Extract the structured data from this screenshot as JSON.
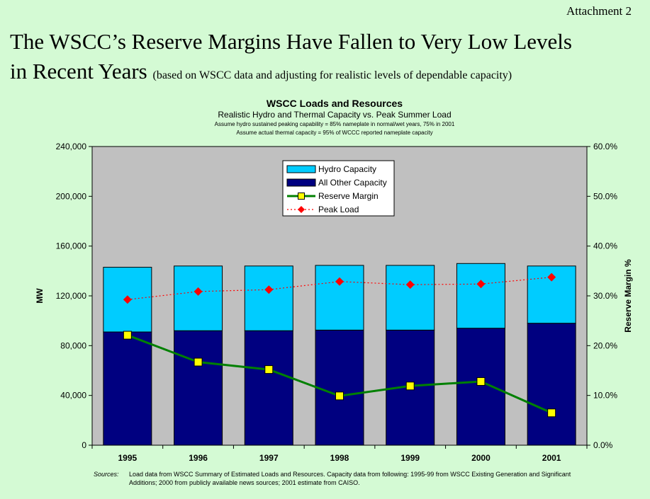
{
  "header": {
    "attachment": "Attachment 2",
    "title_line1": "The WSCC’s Reserve Margins Have Fallen to Very Low Levels",
    "title_line2": "in Recent Years",
    "title_note": "(based on WSCC data and adjusting for realistic levels of dependable capacity)"
  },
  "chart_data": {
    "type": "bar",
    "title": "WSCC Loads and Resources",
    "subtitle": "Realistic Hydro and Thermal Capacity vs. Peak Summer Load",
    "notes": [
      "Assume hydro sustained peaking capability = 85% nameplate in normal/wet years, 75% in 2001",
      "Assume actual thermal capacity = 95% of WCCC reported nameplate capacity"
    ],
    "categories": [
      "1995",
      "1996",
      "1997",
      "1998",
      "1999",
      "2000",
      "2001"
    ],
    "stacked": true,
    "series": [
      {
        "name": "Hydro Capacity",
        "kind": "bar",
        "axis": "left",
        "color": "#00ccff",
        "values": [
          52000,
          52000,
          52000,
          52000,
          52000,
          52000,
          46000
        ]
      },
      {
        "name": "All Other Capacity",
        "kind": "bar",
        "axis": "left",
        "color": "#000080",
        "values": [
          91000,
          92000,
          92000,
          92500,
          92500,
          94000,
          98000
        ]
      },
      {
        "name": "Reserve Margin",
        "kind": "line",
        "axis": "right",
        "color": "#008000",
        "marker_color": "#ffff00",
        "values": [
          22.1,
          16.7,
          15.2,
          9.9,
          11.9,
          12.8,
          6.5
        ]
      },
      {
        "name": "Peak Load",
        "kind": "line",
        "axis": "left",
        "color": "#ff0000",
        "dashed": true,
        "values": [
          117000,
          123500,
          125000,
          131500,
          129000,
          129500,
          135000
        ]
      }
    ],
    "xlabel": "",
    "ylabel": "MW",
    "y2label": "Reserve Margin %",
    "ylim": [
      0,
      240000
    ],
    "y2lim": [
      0,
      60
    ],
    "yticks": [
      "0",
      "40,000",
      "80,000",
      "120,000",
      "160,000",
      "200,000",
      "240,000"
    ],
    "y2ticks": [
      "0.0%",
      "10.0%",
      "20.0%",
      "30.0%",
      "40.0%",
      "50.0%",
      "60.0%"
    ],
    "plot_background": "#c0c0c0",
    "legend_position": "top-center"
  },
  "footer": {
    "sources_label": "Sources:",
    "sources_text": "Load data from WSCC Summary of Estimated Loads and Resources.  Capacity data from following: 1995-99 from WSCC Existing Generation and Significant Additions; 2000 from publicly available news sources; 2001 estimate from CAISO."
  }
}
